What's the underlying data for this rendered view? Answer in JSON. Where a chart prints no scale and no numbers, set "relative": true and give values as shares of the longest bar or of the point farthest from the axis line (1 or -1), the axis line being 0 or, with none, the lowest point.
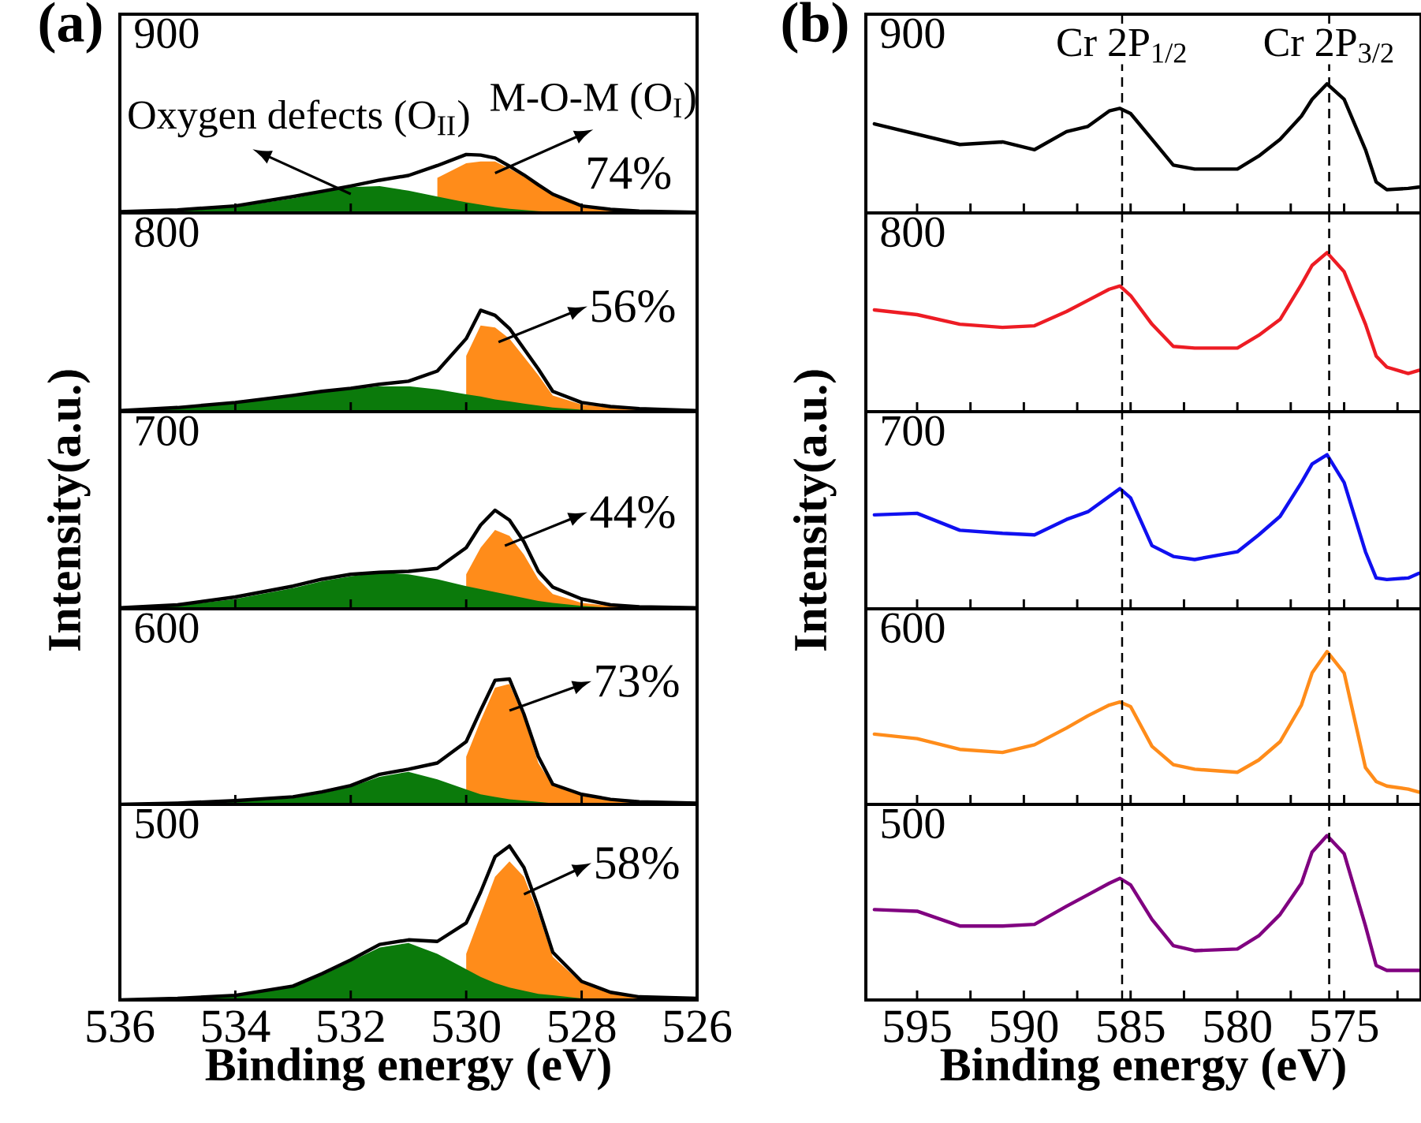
{
  "chart_data": [
    {
      "type": "area",
      "title": "900",
      "x": [
        536,
        535,
        534,
        533,
        532.5,
        532,
        531.5,
        531,
        530.5,
        530,
        529.75,
        529.5,
        529.25,
        529,
        528.75,
        528.5,
        528,
        527.5,
        527,
        526
      ],
      "xlim": [
        536,
        526
      ],
      "xticks": [
        536,
        534,
        532,
        530,
        528,
        526
      ],
      "relative": true,
      "tick_labels": false,
      "annotations": [
        "(a)",
        "Oxygen defects (O$_{II}$)",
        "M-O-M (O$_{I}$)",
        "74%"
      ],
      "series": [
        {
          "color": "#ff8c1a",
          "values": [
            null,
            null,
            null,
            null,
            null,
            null,
            null,
            null,
            0.6,
            0.85,
            0.88,
            0.88,
            0.76,
            0.62,
            0.46,
            0.3,
            0.11,
            0.05,
            0.02,
            0
          ]
        },
        {
          "color": "#0b7a0b",
          "values": [
            0,
            0.03,
            0.1,
            0.25,
            0.35,
            0.44,
            0.46,
            0.38,
            0.28,
            0.18,
            0.14,
            0.1,
            0.07,
            0.05,
            0.03,
            0.02,
            0.01,
            0,
            0,
            0
          ]
        },
        {
          "type": "line",
          "color": "#000000",
          "values": [
            0.02,
            0.05,
            0.12,
            0.28,
            0.37,
            0.46,
            0.56,
            0.64,
            0.81,
            1.0,
            0.99,
            0.94,
            0.8,
            0.65,
            0.48,
            0.32,
            0.12,
            0.06,
            0.03,
            0.01
          ]
        }
      ]
    },
    {
      "type": "area",
      "title": "800",
      "x": [
        536,
        535,
        534,
        533,
        532.5,
        532,
        531.5,
        531,
        530.5,
        530,
        529.75,
        529.5,
        529.25,
        529,
        528.75,
        528.5,
        528,
        527.5,
        527,
        526
      ],
      "xlim": [
        536,
        526
      ],
      "xticks": [
        536,
        534,
        532,
        530,
        528,
        526
      ],
      "relative": true,
      "tick_labels": false,
      "annotations": [
        "56%"
      ],
      "series": [
        {
          "color": "#ff8c1a",
          "values": [
            null,
            null,
            null,
            null,
            null,
            null,
            null,
            null,
            null,
            0.55,
            0.85,
            0.83,
            0.72,
            0.54,
            0.36,
            0.16,
            0.07,
            0.04,
            0.03,
            0.01
          ]
        },
        {
          "color": "#0b7a0b",
          "values": [
            0,
            0.03,
            0.08,
            0.15,
            0.19,
            0.22,
            0.25,
            0.25,
            0.22,
            0.17,
            0.15,
            0.12,
            0.1,
            0.08,
            0.06,
            0.04,
            0.02,
            0.01,
            0,
            0
          ]
        },
        {
          "type": "line",
          "color": "#000000",
          "values": [
            0.01,
            0.04,
            0.09,
            0.16,
            0.2,
            0.23,
            0.27,
            0.3,
            0.4,
            0.72,
            1.0,
            0.95,
            0.82,
            0.62,
            0.42,
            0.2,
            0.09,
            0.05,
            0.03,
            0.01
          ]
        }
      ]
    },
    {
      "type": "area",
      "title": "700",
      "ylabel": "Intensity(a.u.)",
      "x": [
        536,
        535,
        534,
        533,
        532.5,
        532,
        531.5,
        531,
        530.5,
        530,
        529.75,
        529.5,
        529.25,
        529,
        528.75,
        528.5,
        528,
        527.5,
        527,
        526
      ],
      "xlim": [
        536,
        526
      ],
      "xticks": [
        536,
        534,
        532,
        530,
        528,
        526
      ],
      "relative": true,
      "tick_labels": false,
      "annotations": [
        "44%"
      ],
      "series": [
        {
          "color": "#ff8c1a",
          "values": [
            null,
            null,
            null,
            null,
            null,
            null,
            null,
            null,
            null,
            0.35,
            0.62,
            0.8,
            0.74,
            0.55,
            0.3,
            0.15,
            0.06,
            0.03,
            0.02,
            0.01
          ]
        },
        {
          "color": "#0b7a0b",
          "values": [
            0,
            0.03,
            0.1,
            0.21,
            0.28,
            0.33,
            0.37,
            0.35,
            0.3,
            0.23,
            0.2,
            0.17,
            0.14,
            0.11,
            0.08,
            0.06,
            0.03,
            0.01,
            0,
            0
          ]
        },
        {
          "type": "line",
          "color": "#000000",
          "values": [
            0.01,
            0.04,
            0.12,
            0.23,
            0.3,
            0.35,
            0.37,
            0.38,
            0.41,
            0.62,
            0.85,
            1.0,
            0.9,
            0.68,
            0.38,
            0.22,
            0.1,
            0.04,
            0.02,
            0.01
          ]
        }
      ]
    },
    {
      "type": "area",
      "title": "600",
      "x": [
        536,
        535,
        534,
        533,
        532.5,
        532,
        531.5,
        531,
        530.5,
        530,
        529.75,
        529.5,
        529.25,
        529,
        528.75,
        528.5,
        528,
        527.5,
        527,
        526
      ],
      "xlim": [
        536,
        526
      ],
      "xticks": [
        536,
        534,
        532,
        530,
        528,
        526
      ],
      "relative": true,
      "tick_labels": false,
      "annotations": [
        "73%"
      ],
      "series": [
        {
          "color": "#ff8c1a",
          "values": [
            null,
            null,
            null,
            null,
            null,
            null,
            null,
            null,
            null,
            0.38,
            0.67,
            0.93,
            0.96,
            0.69,
            0.33,
            0.15,
            0.08,
            0.04,
            0.02,
            0.01
          ]
        },
        {
          "color": "#0b7a0b",
          "values": [
            0,
            0,
            0.02,
            0.05,
            0.09,
            0.14,
            0.22,
            0.26,
            0.2,
            0.12,
            0.08,
            0.06,
            0.04,
            0.03,
            0.02,
            0.01,
            0,
            0,
            0,
            0
          ]
        },
        {
          "type": "line",
          "color": "#000000",
          "values": [
            0,
            0.01,
            0.03,
            0.06,
            0.1,
            0.15,
            0.24,
            0.28,
            0.33,
            0.5,
            0.75,
            0.99,
            1.0,
            0.72,
            0.38,
            0.16,
            0.08,
            0.04,
            0.02,
            0.01
          ]
        }
      ]
    },
    {
      "type": "area",
      "title": "500",
      "xlabel": "Binding energy (eV)",
      "x": [
        536,
        535,
        534,
        533,
        532.5,
        532,
        531.5,
        531,
        530.5,
        530,
        529.75,
        529.5,
        529.25,
        529,
        528.75,
        528.5,
        528,
        527.5,
        527,
        526
      ],
      "xlim": [
        536,
        526
      ],
      "xticks": [
        536,
        534,
        532,
        530,
        528,
        526
      ],
      "relative": true,
      "tick_labels": "x",
      "annotations": [
        "58%"
      ],
      "series": [
        {
          "color": "#ff8c1a",
          "values": [
            null,
            null,
            null,
            null,
            null,
            null,
            null,
            null,
            null,
            0.3,
            0.55,
            0.8,
            0.9,
            0.8,
            0.56,
            0.28,
            0.11,
            0.05,
            0.02,
            0.01
          ]
        },
        {
          "color": "#0b7a0b",
          "values": [
            0,
            0.01,
            0.03,
            0.09,
            0.16,
            0.25,
            0.34,
            0.37,
            0.3,
            0.2,
            0.15,
            0.11,
            0.08,
            0.06,
            0.04,
            0.03,
            0.01,
            0,
            0,
            0
          ]
        },
        {
          "type": "line",
          "color": "#000000",
          "values": [
            0,
            0.01,
            0.03,
            0.09,
            0.17,
            0.26,
            0.36,
            0.39,
            0.38,
            0.5,
            0.7,
            0.93,
            1.0,
            0.86,
            0.6,
            0.31,
            0.12,
            0.05,
            0.02,
            0.01
          ]
        }
      ]
    },
    {
      "type": "line",
      "title": "900",
      "x": [
        597,
        595,
        593,
        591,
        589.5,
        588,
        587,
        586,
        585.5,
        585,
        584,
        583,
        582,
        580,
        579,
        578,
        577,
        576.5,
        575.8,
        575,
        574,
        573.5,
        573,
        572,
        571.5
      ],
      "xlim": [
        597.4,
        571.4
      ],
      "xticks": [
        595,
        590,
        585,
        580,
        575,
        {
          "value": 592.5,
          "label": null
        },
        {
          "value": 587.5,
          "label": null
        },
        {
          "value": 582.5,
          "label": null
        },
        {
          "value": 577.5,
          "label": null
        },
        {
          "value": 572.5,
          "label": null
        }
      ],
      "relative": true,
      "tick_labels": false,
      "annotations": [
        "(b)"
      ],
      "ref_lines": [
        {
          "axis": "x",
          "value": 585.4,
          "label": "Cr 2P$_{1/2}$",
          "color": "#000000",
          "line_style": "dashed"
        },
        {
          "axis": "x",
          "value": 575.7,
          "label": "Cr 2P$_{3/2}$",
          "color": "#000000",
          "line_style": "dashed"
        }
      ],
      "series": [
        {
          "color": "#000000",
          "values": [
            0.69,
            0.61,
            0.53,
            0.55,
            0.49,
            0.63,
            0.67,
            0.79,
            0.81,
            0.77,
            0.57,
            0.37,
            0.34,
            0.34,
            0.44,
            0.57,
            0.75,
            0.88,
            1.0,
            0.88,
            0.49,
            0.24,
            0.18,
            0.19,
            0.2
          ]
        }
      ]
    },
    {
      "type": "line",
      "title": "800",
      "x": [
        597,
        595,
        593,
        591,
        589.5,
        588,
        587,
        586,
        585.5,
        585,
        584,
        583,
        582,
        580,
        579,
        578,
        577,
        576.5,
        575.8,
        575,
        574,
        573.5,
        573,
        572,
        571.5
      ],
      "xlim": [
        597.4,
        571.4
      ],
      "xticks": [
        595,
        590,
        585,
        580,
        575,
        {
          "value": 592.5,
          "label": null
        },
        {
          "value": 587.5,
          "label": null
        },
        {
          "value": 582.5,
          "label": null
        },
        {
          "value": 577.5,
          "label": null
        },
        {
          "value": 572.5,
          "label": null
        }
      ],
      "relative": true,
      "tick_labels": false,
      "ref_lines": [
        {
          "axis": "x",
          "value": 585.4,
          "color": "#000000",
          "line_style": "dashed"
        },
        {
          "axis": "x",
          "value": 575.7,
          "color": "#000000",
          "line_style": "dashed"
        }
      ],
      "series": [
        {
          "color": "#ed1c24",
          "values": [
            0.64,
            0.61,
            0.55,
            0.53,
            0.54,
            0.63,
            0.7,
            0.77,
            0.79,
            0.73,
            0.55,
            0.41,
            0.4,
            0.4,
            0.48,
            0.58,
            0.8,
            0.92,
            1.0,
            0.88,
            0.55,
            0.35,
            0.28,
            0.24,
            0.26
          ]
        }
      ]
    },
    {
      "type": "line",
      "title": "700",
      "ylabel": "Intensity(a.u.)",
      "x": [
        597,
        595,
        593,
        591,
        589.5,
        588,
        587,
        586,
        585.5,
        585,
        584,
        583,
        582,
        580,
        579,
        578,
        577,
        576.5,
        575.8,
        575,
        574,
        573.5,
        573,
        572,
        571.5
      ],
      "xlim": [
        597.4,
        571.4
      ],
      "xticks": [
        595,
        590,
        585,
        580,
        575,
        {
          "value": 592.5,
          "label": null
        },
        {
          "value": 587.5,
          "label": null
        },
        {
          "value": 582.5,
          "label": null
        },
        {
          "value": 577.5,
          "label": null
        },
        {
          "value": 572.5,
          "label": null
        }
      ],
      "relative": true,
      "tick_labels": false,
      "ref_lines": [
        {
          "axis": "x",
          "value": 585.4,
          "color": "#000000",
          "line_style": "dashed"
        },
        {
          "axis": "x",
          "value": 575.7,
          "color": "#000000",
          "line_style": "dashed"
        }
      ],
      "series": [
        {
          "color": "#1010f0",
          "values": [
            0.61,
            0.62,
            0.51,
            0.49,
            0.48,
            0.58,
            0.63,
            0.73,
            0.78,
            0.72,
            0.41,
            0.34,
            0.32,
            0.37,
            0.48,
            0.6,
            0.82,
            0.94,
            1.0,
            0.82,
            0.37,
            0.2,
            0.19,
            0.2,
            0.23
          ]
        }
      ]
    },
    {
      "type": "line",
      "title": "600",
      "x": [
        597,
        595,
        593,
        591,
        589.5,
        588,
        587,
        586,
        585.5,
        585,
        584,
        583,
        582,
        580,
        579,
        578,
        577,
        576.5,
        575.8,
        575,
        574,
        573.5,
        573,
        572,
        571.5
      ],
      "xlim": [
        597.4,
        571.4
      ],
      "xticks": [
        595,
        590,
        585,
        580,
        575,
        {
          "value": 592.5,
          "label": null
        },
        {
          "value": 587.5,
          "label": null
        },
        {
          "value": 582.5,
          "label": null
        },
        {
          "value": 577.5,
          "label": null
        },
        {
          "value": 572.5,
          "label": null
        }
      ],
      "relative": true,
      "tick_labels": false,
      "ref_lines": [
        {
          "axis": "x",
          "value": 585.4,
          "color": "#000000",
          "line_style": "dashed"
        },
        {
          "axis": "x",
          "value": 575.7,
          "color": "#000000",
          "line_style": "dashed"
        }
      ],
      "series": [
        {
          "color": "#ff8c1a",
          "values": [
            0.46,
            0.43,
            0.36,
            0.34,
            0.39,
            0.5,
            0.58,
            0.65,
            0.67,
            0.64,
            0.38,
            0.26,
            0.23,
            0.21,
            0.29,
            0.41,
            0.65,
            0.86,
            1.0,
            0.86,
            0.24,
            0.15,
            0.12,
            0.1,
            0.08
          ]
        }
      ]
    },
    {
      "type": "line",
      "title": "500",
      "xlabel": "Binding energy (eV)",
      "x": [
        597,
        595,
        593,
        591,
        589.5,
        588,
        587,
        586,
        585.5,
        585,
        584,
        583,
        582,
        580,
        579,
        578,
        577,
        576.5,
        575.8,
        575,
        574,
        573.5,
        573,
        572,
        571.5
      ],
      "xlim": [
        597.4,
        571.4
      ],
      "xticks": [
        595,
        590,
        585,
        580,
        575,
        {
          "value": 592.5,
          "label": null
        },
        {
          "value": 587.5,
          "label": null
        },
        {
          "value": 582.5,
          "label": null
        },
        {
          "value": 577.5,
          "label": null
        },
        {
          "value": 572.5,
          "label": null
        }
      ],
      "relative": true,
      "tick_labels": "x",
      "ref_lines": [
        {
          "axis": "x",
          "value": 585.4,
          "color": "#000000",
          "line_style": "dashed"
        },
        {
          "axis": "x",
          "value": 575.7,
          "color": "#000000",
          "line_style": "dashed"
        }
      ],
      "series": [
        {
          "color": "#800080",
          "values": [
            0.55,
            0.54,
            0.45,
            0.45,
            0.46,
            0.57,
            0.64,
            0.71,
            0.74,
            0.7,
            0.49,
            0.33,
            0.3,
            0.31,
            0.39,
            0.52,
            0.71,
            0.9,
            1.0,
            0.89,
            0.45,
            0.21,
            0.18,
            0.18,
            0.18
          ]
        }
      ]
    }
  ]
}
